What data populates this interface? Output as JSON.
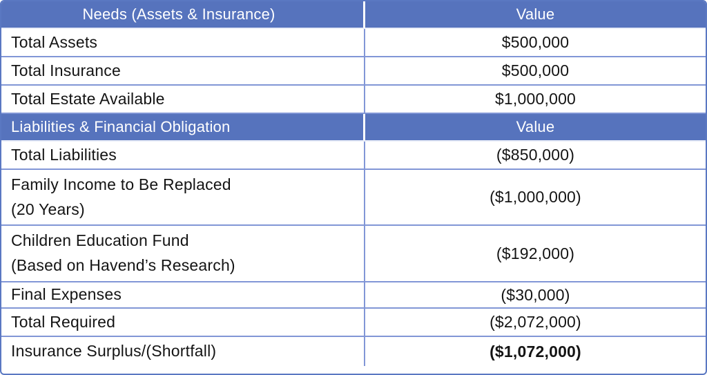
{
  "colors": {
    "header_bg": "#5673bd",
    "header_text": "#ffffff",
    "grid_line": "#8196d6",
    "outer_border": "#5a78c2",
    "body_text": "#141414"
  },
  "rows": [
    {
      "type": "section-header",
      "label": "Needs (Assets & Insurance)",
      "value": "Value"
    },
    {
      "type": "data",
      "label": "Total Assets",
      "value": "$500,000"
    },
    {
      "type": "data",
      "label": "Total Insurance",
      "value": "$500,000"
    },
    {
      "type": "data",
      "label": "Total Estate Available",
      "value": "$1,000,000"
    },
    {
      "type": "section-header",
      "label": "Liabilities & Financial Obligation",
      "value": "Value"
    },
    {
      "type": "data",
      "label": "Total Liabilities",
      "value": "($850,000)"
    },
    {
      "type": "data",
      "label": "Family Income to Be Replaced\n(20 Years)",
      "value": "($1,000,000)"
    },
    {
      "type": "data",
      "label": "Children Education Fund\n(Based on Havend’s Research)",
      "value": "($192,000)"
    },
    {
      "type": "data",
      "label": "Final Expenses",
      "value": "($30,000)"
    },
    {
      "type": "data",
      "label": "Total Required",
      "value": "($2,072,000)"
    },
    {
      "type": "data",
      "label": "Insurance Surplus/(Shortfall)",
      "value": "($1,072,000)",
      "bold_value": true
    }
  ]
}
